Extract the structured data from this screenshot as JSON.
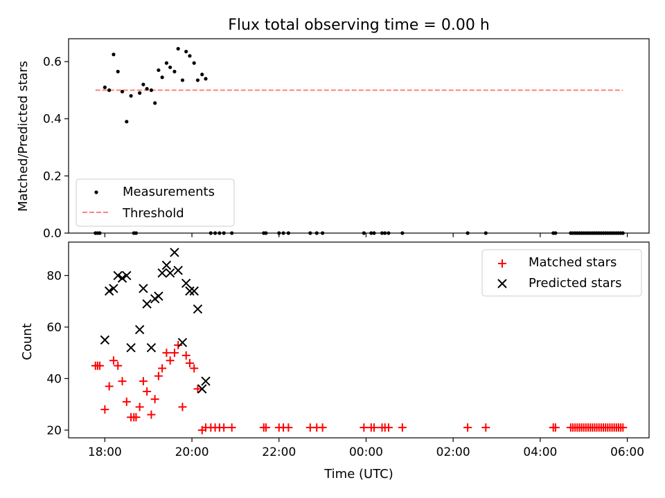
{
  "chart_data": [
    {
      "type": "scatter",
      "title": "Flux total observing time = 0.00 h",
      "xlabel": "",
      "ylabel": "Matched/Predicted stars",
      "xlim": [
        "17:10",
        "06:30"
      ],
      "ylim": [
        0,
        0.68
      ],
      "yticks": [
        "0.0",
        "0.2",
        "0.4",
        "0.6"
      ],
      "grid": false,
      "legend_position": "lower-left",
      "series": [
        {
          "name": "Measurements",
          "marker": "dot",
          "color": "#000000",
          "points": [
            [
              "17:47",
              0
            ],
            [
              "17:50",
              0
            ],
            [
              "17:53",
              0
            ],
            [
              "18:00",
              0.51
            ],
            [
              "18:06",
              0.5
            ],
            [
              "18:12",
              0.625
            ],
            [
              "18:18",
              0.565
            ],
            [
              "18:24",
              0.495
            ],
            [
              "18:30",
              0.39
            ],
            [
              "18:36",
              0.48
            ],
            [
              "18:40",
              0
            ],
            [
              "18:43",
              0
            ],
            [
              "18:48",
              0.49
            ],
            [
              "18:53",
              0.52
            ],
            [
              "18:58",
              0.505
            ],
            [
              "19:04",
              0.5
            ],
            [
              "19:09",
              0.455
            ],
            [
              "19:14",
              0.57
            ],
            [
              "19:19",
              0.545
            ],
            [
              "19:25",
              0.595
            ],
            [
              "19:30",
              0.58
            ],
            [
              "19:36",
              0.565
            ],
            [
              "19:41",
              0.645
            ],
            [
              "19:47",
              0.535
            ],
            [
              "19:52",
              0.635
            ],
            [
              "19:57",
              0.62
            ],
            [
              "20:03",
              0.595
            ],
            [
              "20:08",
              0.535
            ],
            [
              "20:14",
              0.555
            ],
            [
              "20:19",
              0.54
            ],
            [
              "20:26",
              0
            ],
            [
              "20:32",
              0
            ],
            [
              "20:38",
              0
            ],
            [
              "20:44",
              0
            ],
            [
              "20:55",
              0
            ],
            [
              "21:39",
              0
            ],
            [
              "21:42",
              0
            ],
            [
              "22:00",
              0
            ],
            [
              "22:06",
              0
            ],
            [
              "22:13",
              0
            ],
            [
              "22:43",
              0
            ],
            [
              "22:52",
              0
            ],
            [
              "23:00",
              0
            ],
            [
              "23:57",
              0
            ],
            [
              "00:07",
              0
            ],
            [
              "00:11",
              0
            ],
            [
              "00:22",
              0
            ],
            [
              "00:26",
              0
            ],
            [
              "00:31",
              0
            ],
            [
              "00:50",
              0
            ],
            [
              "02:20",
              0
            ],
            [
              "02:45",
              0
            ],
            [
              "04:18",
              0
            ],
            [
              "04:21",
              0
            ],
            [
              "04:42",
              0
            ],
            [
              "04:45",
              0
            ],
            [
              "04:48",
              0
            ],
            [
              "04:51",
              0
            ],
            [
              "04:54",
              0
            ],
            [
              "04:57",
              0
            ],
            [
              "05:00",
              0
            ],
            [
              "05:03",
              0
            ],
            [
              "05:06",
              0
            ],
            [
              "05:09",
              0
            ],
            [
              "05:12",
              0
            ],
            [
              "05:15",
              0
            ],
            [
              "05:18",
              0
            ],
            [
              "05:21",
              0
            ],
            [
              "05:24",
              0
            ],
            [
              "05:27",
              0
            ],
            [
              "05:30",
              0
            ],
            [
              "05:33",
              0
            ],
            [
              "05:36",
              0
            ],
            [
              "05:39",
              0
            ],
            [
              "05:42",
              0
            ],
            [
              "05:45",
              0
            ],
            [
              "05:48",
              0
            ],
            [
              "05:51",
              0
            ],
            [
              "05:54",
              0
            ]
          ]
        },
        {
          "name": "Threshold",
          "line_style": "dashed",
          "color": "#ff8080",
          "points": [
            [
              "17:47",
              0.5
            ],
            [
              "05:54",
              0.5
            ]
          ]
        }
      ]
    },
    {
      "type": "scatter",
      "title": "",
      "xlabel": "Time (UTC)",
      "ylabel": "Count",
      "xlim": [
        "17:10",
        "06:30"
      ],
      "xticks": [
        "18:00",
        "20:00",
        "22:00",
        "00:00",
        "02:00",
        "04:00",
        "06:00"
      ],
      "ylim": [
        17,
        93
      ],
      "yticks": [
        "20",
        "40",
        "60",
        "80"
      ],
      "grid": false,
      "legend_position": "top-right",
      "series": [
        {
          "name": "Matched stars",
          "marker": "plus",
          "color": "#ff0000",
          "points": [
            [
              "17:47",
              45
            ],
            [
              "17:50",
              45
            ],
            [
              "17:53",
              45
            ],
            [
              "18:00",
              28
            ],
            [
              "18:06",
              37
            ],
            [
              "18:12",
              47
            ],
            [
              "18:18",
              45
            ],
            [
              "18:24",
              39
            ],
            [
              "18:30",
              31
            ],
            [
              "18:36",
              25
            ],
            [
              "18:40",
              25
            ],
            [
              "18:43",
              25
            ],
            [
              "18:48",
              29
            ],
            [
              "18:53",
              39
            ],
            [
              "18:58",
              35
            ],
            [
              "19:04",
              26
            ],
            [
              "19:09",
              32
            ],
            [
              "19:14",
              41
            ],
            [
              "19:19",
              44
            ],
            [
              "19:25",
              50
            ],
            [
              "19:30",
              47
            ],
            [
              "19:36",
              50
            ],
            [
              "19:41",
              53
            ],
            [
              "19:47",
              29
            ],
            [
              "19:52",
              49
            ],
            [
              "19:57",
              46
            ],
            [
              "20:03",
              44
            ],
            [
              "20:08",
              36
            ],
            [
              "20:14",
              20
            ],
            [
              "20:19",
              21
            ],
            [
              "20:26",
              21
            ],
            [
              "20:32",
              21
            ],
            [
              "20:38",
              21
            ],
            [
              "20:44",
              21
            ],
            [
              "20:55",
              21
            ],
            [
              "21:39",
              21
            ],
            [
              "21:42",
              21
            ],
            [
              "22:00",
              21
            ],
            [
              "22:06",
              21
            ],
            [
              "22:13",
              21
            ],
            [
              "22:43",
              21
            ],
            [
              "22:52",
              21
            ],
            [
              "23:00",
              21
            ],
            [
              "23:57",
              21
            ],
            [
              "00:07",
              21
            ],
            [
              "00:11",
              21
            ],
            [
              "00:22",
              21
            ],
            [
              "00:26",
              21
            ],
            [
              "00:31",
              21
            ],
            [
              "00:50",
              21
            ],
            [
              "02:20",
              21
            ],
            [
              "02:45",
              21
            ],
            [
              "04:18",
              21
            ],
            [
              "04:21",
              21
            ],
            [
              "04:42",
              21
            ],
            [
              "04:45",
              21
            ],
            [
              "04:48",
              21
            ],
            [
              "04:51",
              21
            ],
            [
              "04:54",
              21
            ],
            [
              "04:57",
              21
            ],
            [
              "05:00",
              21
            ],
            [
              "05:03",
              21
            ],
            [
              "05:06",
              21
            ],
            [
              "05:09",
              21
            ],
            [
              "05:12",
              21
            ],
            [
              "05:15",
              21
            ],
            [
              "05:18",
              21
            ],
            [
              "05:21",
              21
            ],
            [
              "05:24",
              21
            ],
            [
              "05:27",
              21
            ],
            [
              "05:30",
              21
            ],
            [
              "05:33",
              21
            ],
            [
              "05:36",
              21
            ],
            [
              "05:39",
              21
            ],
            [
              "05:42",
              21
            ],
            [
              "05:45",
              21
            ],
            [
              "05:48",
              21
            ],
            [
              "05:51",
              21
            ],
            [
              "05:54",
              21
            ]
          ]
        },
        {
          "name": "Predicted stars",
          "marker": "x",
          "color": "#000000",
          "points": [
            [
              "18:00",
              55
            ],
            [
              "18:06",
              74
            ],
            [
              "18:12",
              75
            ],
            [
              "18:18",
              80
            ],
            [
              "18:24",
              79
            ],
            [
              "18:30",
              80
            ],
            [
              "18:36",
              52
            ],
            [
              "18:48",
              59
            ],
            [
              "18:53",
              75
            ],
            [
              "18:58",
              69
            ],
            [
              "19:04",
              52
            ],
            [
              "19:09",
              71
            ],
            [
              "19:14",
              72
            ],
            [
              "19:19",
              81
            ],
            [
              "19:25",
              84
            ],
            [
              "19:30",
              81
            ],
            [
              "19:36",
              89
            ],
            [
              "19:41",
              82
            ],
            [
              "19:47",
              54
            ],
            [
              "19:52",
              77
            ],
            [
              "19:57",
              74
            ],
            [
              "20:03",
              74
            ],
            [
              "20:08",
              67
            ],
            [
              "20:14",
              36
            ],
            [
              "20:19",
              39
            ]
          ]
        }
      ]
    }
  ]
}
